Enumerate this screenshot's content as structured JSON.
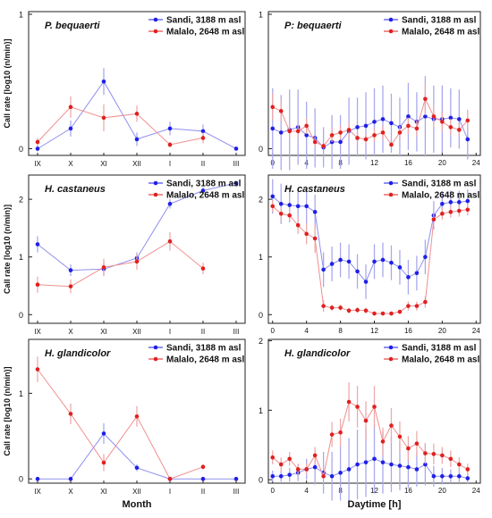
{
  "chart_data": [
    {
      "type": "line",
      "title": "P. bequaerti",
      "xlabel": "",
      "ylabel": "Call rate [log10 (n/min)]",
      "categories": [
        "IX",
        "X",
        "XI",
        "XII",
        "I",
        "II",
        "III"
      ],
      "ylim": [
        0,
        1
      ],
      "yticks": [
        0,
        1
      ],
      "legend_position": "top-right",
      "series": [
        {
          "name": "Sandi, 3188 m asl",
          "color": "#1f1fe8",
          "values": [
            0.0,
            0.15,
            0.5,
            0.07,
            0.15,
            0.13,
            0.0
          ],
          "err": [
            0.02,
            0.06,
            0.1,
            0.05,
            0.05,
            0.05,
            0.01
          ]
        },
        {
          "name": "Malalo, 2648 m asl",
          "color": "#e02020",
          "values": [
            0.05,
            0.31,
            0.23,
            0.26,
            0.03,
            0.08,
            null
          ],
          "err": [
            0.03,
            0.08,
            0.1,
            0.06,
            0.02,
            0.04,
            0
          ]
        }
      ]
    },
    {
      "type": "line",
      "title": "P: bequaerti",
      "xlabel": "",
      "ylabel": "",
      "x": [
        0,
        1,
        2,
        3,
        4,
        5,
        6,
        7,
        8,
        9,
        10,
        11,
        12,
        13,
        14,
        15,
        16,
        17,
        18,
        19,
        20,
        21,
        22,
        23
      ],
      "xticks": [
        0,
        4,
        8,
        12,
        16,
        20,
        24
      ],
      "xlim": [
        -0.5,
        24.5
      ],
      "ylim": [
        0,
        1
      ],
      "yticks": [
        0,
        1
      ],
      "legend_position": "top-right",
      "series": [
        {
          "name": "Sandi, 3188 m asl",
          "color": "#1f1fe8",
          "values": [
            0.15,
            0.12,
            0.14,
            0.16,
            0.1,
            0.08,
            0.01,
            0.05,
            0.05,
            0.13,
            0.16,
            0.17,
            0.2,
            0.22,
            0.19,
            0.16,
            0.24,
            0.2,
            0.24,
            0.22,
            0.22,
            0.23,
            0.22,
            0.07
          ],
          "err": [
            0.3,
            0.28,
            0.3,
            0.28,
            0.25,
            0.22,
            0.15,
            0.2,
            0.2,
            0.25,
            0.22,
            0.25,
            0.25,
            0.25,
            0.22,
            0.22,
            0.25,
            0.22,
            0.3,
            0.25,
            0.25,
            0.22,
            0.22,
            0.15
          ]
        },
        {
          "name": "Malalo, 2648 m asl",
          "color": "#e02020",
          "values": [
            0.31,
            0.28,
            0.13,
            0.13,
            0.17,
            0.05,
            0.02,
            0.1,
            0.12,
            0.14,
            0.08,
            0.07,
            0.1,
            0.12,
            0.03,
            0.12,
            0.17,
            0.15,
            0.37,
            0.24,
            0.2,
            0.16,
            0.14,
            0.21
          ],
          "err": [
            0.1,
            0.08,
            0.06,
            0.05,
            0.06,
            0.04,
            0.02,
            0.05,
            0.05,
            0.06,
            0.04,
            0.04,
            0.05,
            0.05,
            0.02,
            0.05,
            0.06,
            0.06,
            0.12,
            0.08,
            0.07,
            0.06,
            0.05,
            0.08
          ]
        }
      ]
    },
    {
      "type": "line",
      "title": "H. castaneus",
      "xlabel": "",
      "ylabel": "Call rate [log10 (n/min)]",
      "categories": [
        "IX",
        "X",
        "XI",
        "XII",
        "I",
        "II",
        "III"
      ],
      "ylim": [
        0,
        2.4
      ],
      "yticks": [
        0,
        1,
        2
      ],
      "legend_position": "top-right",
      "series": [
        {
          "name": "Sandi, 3188 m asl",
          "color": "#1f1fe8",
          "values": [
            1.22,
            0.77,
            0.79,
            0.98,
            1.92,
            2.15,
            2.28
          ],
          "err": [
            0.14,
            0.1,
            0.12,
            0.1,
            0.08,
            0.06,
            0.04
          ]
        },
        {
          "name": "Malalo, 2648 m asl",
          "color": "#e02020",
          "values": [
            0.52,
            0.49,
            0.82,
            0.92,
            1.27,
            0.8,
            null
          ],
          "err": [
            0.14,
            0.12,
            0.15,
            0.14,
            0.16,
            0.1,
            0
          ]
        }
      ]
    },
    {
      "type": "line",
      "title": "H. castaneus",
      "xlabel": "",
      "ylabel": "",
      "x": [
        0,
        1,
        2,
        3,
        4,
        5,
        6,
        7,
        8,
        9,
        10,
        11,
        12,
        13,
        14,
        15,
        16,
        17,
        18,
        19,
        20,
        21,
        22,
        23
      ],
      "xticks": [
        0,
        4,
        8,
        12,
        16,
        20,
        24
      ],
      "xlim": [
        -0.5,
        24.5
      ],
      "ylim": [
        0,
        2.4
      ],
      "yticks": [
        0,
        1,
        2
      ],
      "legend_position": "top-right",
      "series": [
        {
          "name": "Sandi, 3188 m asl",
          "color": "#1f1fe8",
          "values": [
            2.05,
            1.92,
            1.9,
            1.88,
            1.88,
            1.78,
            0.78,
            0.88,
            0.95,
            0.92,
            0.75,
            0.57,
            0.92,
            0.95,
            0.9,
            0.82,
            0.65,
            0.72,
            1.0,
            1.72,
            1.92,
            1.95,
            1.95,
            1.97
          ],
          "err": [
            0.3,
            0.35,
            0.3,
            0.3,
            0.3,
            0.3,
            0.3,
            0.3,
            0.3,
            0.3,
            0.3,
            0.3,
            0.3,
            0.3,
            0.3,
            0.3,
            0.3,
            0.3,
            0.3,
            0.25,
            0.2,
            0.2,
            0.2,
            0.2
          ]
        },
        {
          "name": "Malalo, 2648 m asl",
          "color": "#e02020",
          "values": [
            1.88,
            1.75,
            1.72,
            1.55,
            1.4,
            1.32,
            0.15,
            0.12,
            0.12,
            0.07,
            0.08,
            0.07,
            0.02,
            0.02,
            0.02,
            0.05,
            0.15,
            0.15,
            0.22,
            1.65,
            1.75,
            1.78,
            1.8,
            1.82
          ],
          "err": [
            0.1,
            0.1,
            0.1,
            0.15,
            0.18,
            0.25,
            0.1,
            0.05,
            0.05,
            0.05,
            0.05,
            0.05,
            0.02,
            0.02,
            0.02,
            0.03,
            0.08,
            0.08,
            0.1,
            0.12,
            0.1,
            0.1,
            0.1,
            0.1
          ]
        }
      ]
    },
    {
      "type": "line",
      "title": "H. glandicolor",
      "xlabel": "Month",
      "ylabel": "Call rate [log10 (n/min)]",
      "categories": [
        "IX",
        "X",
        "XI",
        "XII",
        "I",
        "II",
        "III"
      ],
      "ylim": [
        0,
        1.6
      ],
      "yticks": [
        0,
        1
      ],
      "legend_position": "top-right",
      "series": [
        {
          "name": "Sandi, 3188 m asl",
          "color": "#1f1fe8",
          "values": [
            0.0,
            0.0,
            0.53,
            0.13,
            0.0,
            0.0,
            0.0
          ],
          "err": [
            0.01,
            0.01,
            0.12,
            0.04,
            0.01,
            0.01,
            0.01
          ]
        },
        {
          "name": "Malalo, 2648 m asl",
          "color": "#e02020",
          "values": [
            1.28,
            0.76,
            0.19,
            0.73,
            0.0,
            0.14,
            null
          ],
          "err": [
            0.15,
            0.12,
            0.1,
            0.12,
            0.01,
            0.03,
            0
          ]
        }
      ]
    },
    {
      "type": "line",
      "title": "H. glandicolor",
      "xlabel": "Daytime [h]",
      "ylabel": "",
      "x": [
        0,
        1,
        2,
        3,
        4,
        5,
        6,
        7,
        8,
        9,
        10,
        11,
        12,
        13,
        14,
        15,
        16,
        17,
        18,
        19,
        20,
        21,
        22,
        23
      ],
      "xticks": [
        0,
        4,
        8,
        12,
        16,
        20,
        24
      ],
      "xlim": [
        -0.5,
        24.5
      ],
      "ylim": [
        0,
        2
      ],
      "yticks": [
        0,
        1,
        2
      ],
      "legend_position": "top-right",
      "series": [
        {
          "name": "Sandi, 3188 m asl",
          "color": "#1f1fe8",
          "values": [
            0.05,
            0.05,
            0.07,
            0.1,
            0.15,
            0.18,
            0.1,
            0.05,
            0.1,
            0.15,
            0.22,
            0.25,
            0.3,
            0.25,
            0.22,
            0.2,
            0.18,
            0.15,
            0.22,
            0.05,
            0.05,
            0.05,
            0.05,
            0.02
          ],
          "err": [
            0.08,
            0.08,
            0.1,
            0.12,
            0.15,
            0.25,
            0.3,
            0.35,
            0.4,
            0.45,
            0.5,
            0.5,
            0.5,
            0.45,
            0.4,
            0.35,
            0.3,
            0.25,
            0.3,
            0.15,
            0.12,
            0.1,
            0.1,
            0.08
          ]
        },
        {
          "name": "Malalo, 2648 m asl",
          "color": "#e02020",
          "values": [
            0.32,
            0.22,
            0.3,
            0.15,
            0.15,
            0.35,
            0.05,
            0.65,
            0.68,
            1.12,
            1.05,
            0.85,
            1.05,
            0.55,
            0.78,
            0.62,
            0.45,
            0.52,
            0.38,
            0.37,
            0.35,
            0.3,
            0.22,
            0.15
          ],
          "err": [
            0.1,
            0.1,
            0.1,
            0.08,
            0.08,
            0.12,
            0.05,
            0.18,
            0.2,
            0.28,
            0.3,
            0.28,
            0.3,
            0.2,
            0.25,
            0.22,
            0.18,
            0.18,
            0.15,
            0.15,
            0.12,
            0.12,
            0.1,
            0.08
          ]
        }
      ]
    }
  ]
}
